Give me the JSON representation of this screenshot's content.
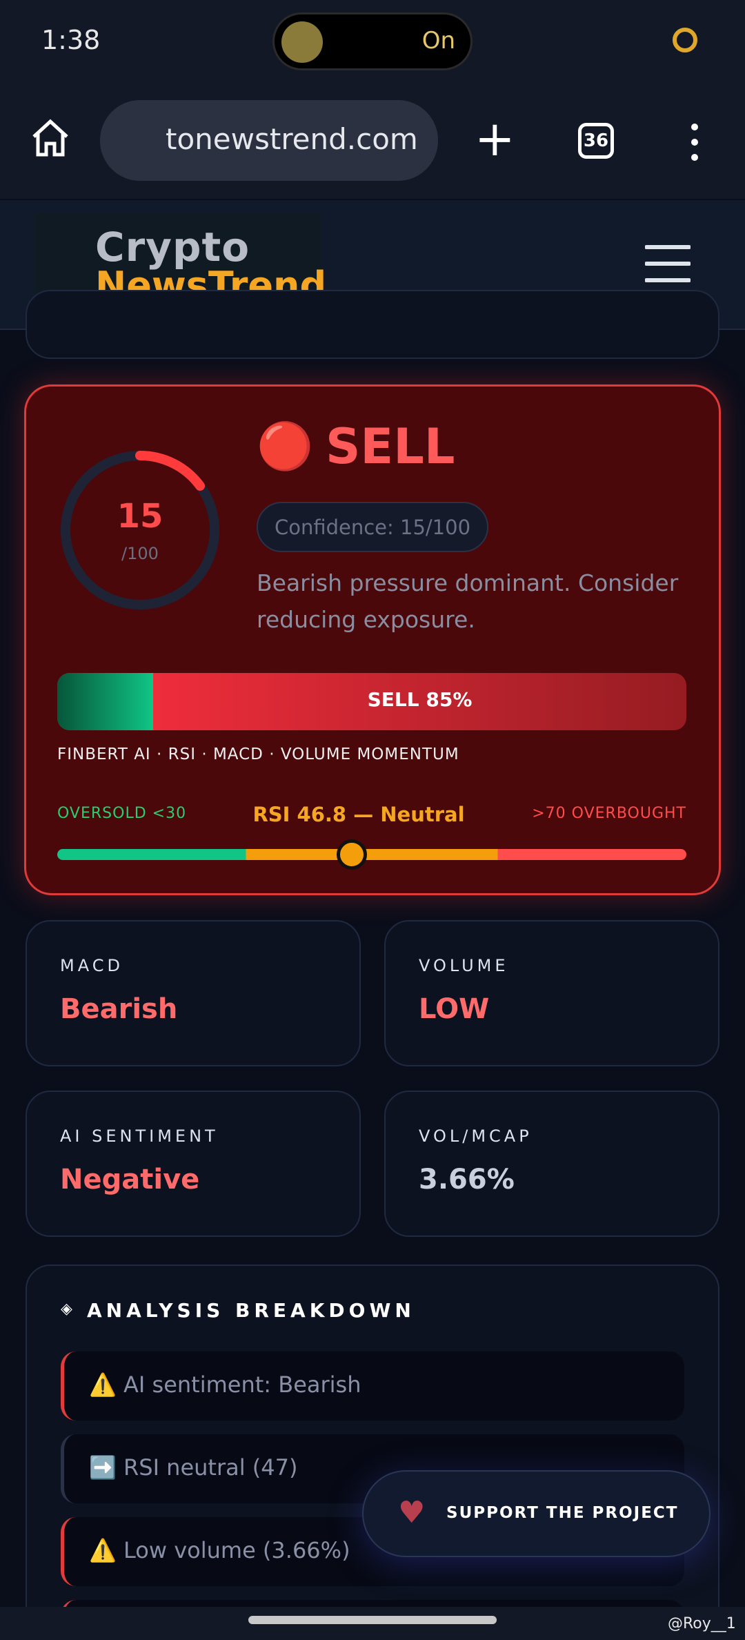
{
  "status_bar": {
    "time": "1:38",
    "pill": "On"
  },
  "browser": {
    "url": "tonewstrend.com",
    "tabs": "36"
  },
  "header": {
    "logo_top": "Crypto",
    "logo_bottom": "NewsTrend"
  },
  "signal": {
    "icon": "🔴",
    "label": "SELL",
    "score": "15",
    "score_max": "/100",
    "confidence": "Confidence: 15/100",
    "description": "Bearish pressure dominant. Consider reducing exposure.",
    "bar_label": "SELL 85%",
    "sources": "FINBERT AI · RSI · MACD · VOLUME MOMENTUM",
    "rsi": {
      "oversold": "OVERSOLD <30",
      "reading": "RSI 46.8 — Neutral",
      "overbought": ">70 OVERBOUGHT"
    }
  },
  "stats": [
    {
      "label": "MACD",
      "value": "Bearish"
    },
    {
      "label": "VOLUME",
      "value": "LOW"
    },
    {
      "label": "AI SENTIMENT",
      "value": "Negative"
    },
    {
      "label": "VOL/MCAP",
      "value": "3.66%"
    }
  ],
  "analysis": {
    "title": "ANALYSIS BREAKDOWN",
    "items": [
      "⚠️ AI sentiment: Bearish",
      "➡️ RSI neutral (47)",
      "⚠️ Low volume (3.66%)"
    ]
  },
  "support": "SUPPORT THE PROJECT",
  "watermark": "@Roy__1"
}
